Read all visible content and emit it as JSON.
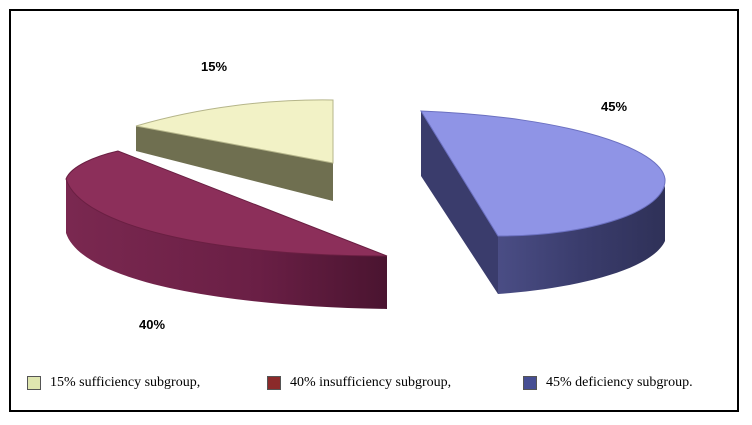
{
  "chart_data": {
    "type": "pie",
    "title": "",
    "style": "3d-exploded",
    "slices": [
      {
        "label": "15%",
        "legend": "15% sufficiency subgroup,",
        "value": 15,
        "color": "#f2f2c6",
        "side_color": "#6f6f50",
        "swatch": "#dfe6b0"
      },
      {
        "label": "40%",
        "legend": "40% insufficiency subgroup,",
        "value": 40,
        "color": "#8c2f5a",
        "side_color": "#6a1f42",
        "swatch": "#8b2a2a"
      },
      {
        "label": "45%",
        "legend": "45% deficiency subgroup.",
        "value": 45,
        "color": "#8f94e6",
        "side_color": "#3d3f70",
        "swatch": "#464e93"
      }
    ],
    "legend_position": "bottom"
  }
}
